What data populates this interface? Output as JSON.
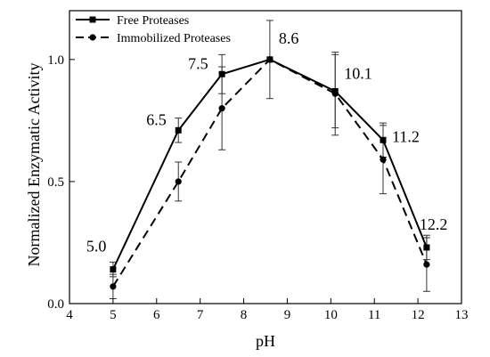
{
  "chart_data": {
    "type": "line",
    "xlabel": "pH",
    "ylabel": "Normalized Enzymatic Activity",
    "xlim": [
      4,
      13
    ],
    "ylim": [
      0.0,
      1.2
    ],
    "x_ticks": [
      4,
      5,
      6,
      7,
      8,
      9,
      10,
      11,
      12,
      13
    ],
    "y_ticks": [
      0.0,
      0.5,
      1.0
    ],
    "y_tick_labels": [
      "0.0",
      "0.5",
      "1.0"
    ],
    "grid": false,
    "legend_position": "top-left",
    "series": [
      {
        "name": "Free Proteases",
        "line_style": "solid",
        "marker": "square",
        "x": [
          5.0,
          6.5,
          7.5,
          8.6,
          10.1,
          11.2,
          12.2
        ],
        "y": [
          0.14,
          0.71,
          0.94,
          1.0,
          0.87,
          0.67,
          0.23
        ],
        "err": [
          0.03,
          0.05,
          0.08,
          0.0,
          0.15,
          0.07,
          0.05
        ]
      },
      {
        "name": "Immobilized Proteases",
        "line_style": "dashed",
        "marker": "circle",
        "x": [
          5.0,
          6.5,
          7.5,
          8.6,
          10.1,
          11.2,
          12.2
        ],
        "y": [
          0.07,
          0.5,
          0.8,
          1.0,
          0.86,
          0.59,
          0.16
        ],
        "err": [
          0.05,
          0.08,
          0.17,
          0.16,
          0.17,
          0.14,
          0.11
        ]
      }
    ],
    "annotations": [
      "5.0",
      "6.5",
      "7.5",
      "8.6",
      "10.1",
      "11.2",
      "12.2"
    ]
  }
}
